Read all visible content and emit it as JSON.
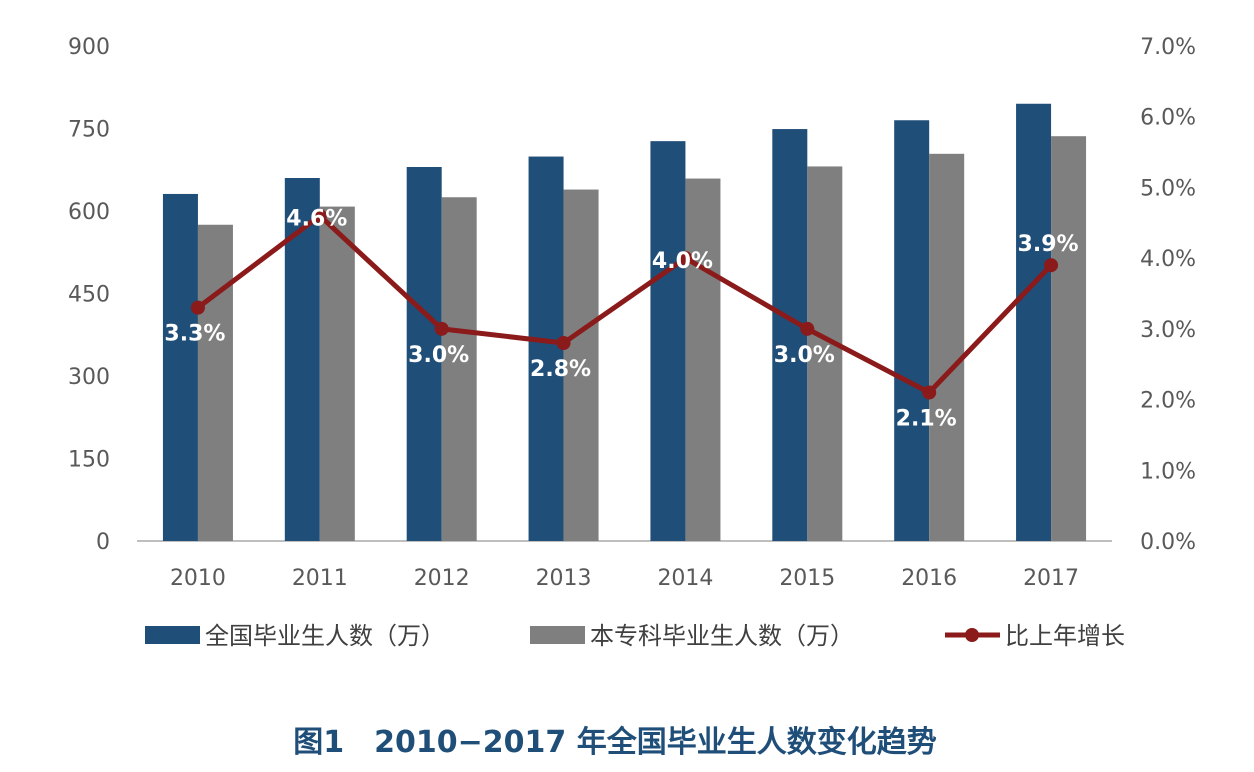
{
  "chart_data": {
    "type": "bar",
    "caption": "图1　2010−2017 年全国毕业生人数变化趋势",
    "categories": [
      "2010",
      "2011",
      "2012",
      "2013",
      "2014",
      "2015",
      "2016",
      "2017"
    ],
    "series": [
      {
        "name": "全国毕业生人数（万）",
        "type": "bar",
        "axis": "left",
        "color": "#1f4e79",
        "values": [
          631,
          660,
          680,
          699,
          727,
          749,
          765,
          795
        ]
      },
      {
        "name": "本专科毕业生人数（万）",
        "type": "bar",
        "axis": "left",
        "color": "#7f7f7f",
        "values": [
          575,
          608,
          625,
          639,
          659,
          681,
          704,
          736
        ]
      },
      {
        "name": "比上年增长",
        "type": "line",
        "axis": "right",
        "color": "#8b1a1a",
        "values": [
          3.3,
          4.6,
          3.0,
          2.8,
          4.0,
          3.0,
          2.1,
          3.9
        ],
        "labels": [
          "3.3%",
          "4.6%",
          "3.0%",
          "2.8%",
          "4.0%",
          "3.0%",
          "2.1%",
          "3.9%"
        ]
      }
    ],
    "y_left": {
      "ylim": [
        0,
        900
      ],
      "ticks": [
        "0",
        "150",
        "300",
        "450",
        "600",
        "750",
        "900"
      ]
    },
    "y_right": {
      "ylim": [
        0,
        7
      ],
      "ticks": [
        "0.0%",
        "1.0%",
        "2.0%",
        "3.0%",
        "4.0%",
        "5.0%",
        "6.0%",
        "7.0%"
      ]
    },
    "grid": false,
    "legend_position": "bottom"
  }
}
